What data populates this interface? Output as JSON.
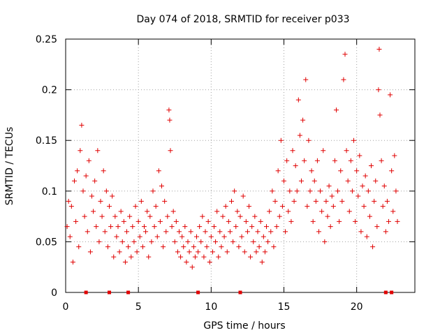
{
  "chart_data": {
    "type": "scatter",
    "title": "Day 074 of 2018, SRMTID for receiver p033",
    "xlabel": "GPS time / hours",
    "ylabel": "SRMTID / TECUs",
    "xlim": [
      0,
      24
    ],
    "ylim": [
      0,
      0.25
    ],
    "xticks": [
      0,
      5,
      10,
      15,
      20
    ],
    "xtick_labels": [
      "0",
      "5",
      "10",
      "15",
      "20"
    ],
    "yticks": [
      0,
      0.05,
      0.1,
      0.15,
      0.2,
      0.25
    ],
    "ytick_labels": [
      "0",
      "0.05",
      "0.1",
      "0.15",
      "0.2",
      "0.25"
    ],
    "grid": true,
    "marker": "plus",
    "color": "#e00000",
    "baseline_markers_x": [
      1.4,
      3.0,
      4.3,
      9.1,
      12.0,
      22.0,
      22.4
    ],
    "series": [
      {
        "name": "SRMTID",
        "points": [
          [
            0.1,
            0.065
          ],
          [
            0.2,
            0.09
          ],
          [
            0.3,
            0.055
          ],
          [
            0.4,
            0.085
          ],
          [
            0.5,
            0.03
          ],
          [
            0.6,
            0.11
          ],
          [
            0.7,
            0.07
          ],
          [
            0.8,
            0.12
          ],
          [
            0.9,
            0.045
          ],
          [
            1.0,
            0.14
          ],
          [
            1.1,
            0.165
          ],
          [
            1.2,
            0.1
          ],
          [
            1.3,
            0.075
          ],
          [
            1.4,
            0.115
          ],
          [
            1.5,
            0.06
          ],
          [
            1.6,
            0.13
          ],
          [
            1.7,
            0.04
          ],
          [
            1.8,
            0.095
          ],
          [
            1.9,
            0.08
          ],
          [
            2.0,
            0.11
          ],
          [
            2.1,
            0.065
          ],
          [
            2.2,
            0.14
          ],
          [
            2.3,
            0.05
          ],
          [
            2.4,
            0.09
          ],
          [
            2.5,
            0.075
          ],
          [
            2.6,
            0.12
          ],
          [
            2.7,
            0.06
          ],
          [
            2.8,
            0.1
          ],
          [
            2.9,
            0.045
          ],
          [
            3.0,
            0.085
          ],
          [
            3.1,
            0.065
          ],
          [
            3.2,
            0.095
          ],
          [
            3.3,
            0.035
          ],
          [
            3.4,
            0.075
          ],
          [
            3.5,
            0.055
          ],
          [
            3.6,
            0.065
          ],
          [
            3.7,
            0.04
          ],
          [
            3.8,
            0.08
          ],
          [
            3.9,
            0.05
          ],
          [
            4.0,
            0.07
          ],
          [
            4.1,
            0.03
          ],
          [
            4.2,
            0.06
          ],
          [
            4.3,
            0.045
          ],
          [
            4.4,
            0.075
          ],
          [
            4.5,
            0.035
          ],
          [
            4.6,
            0.065
          ],
          [
            4.7,
            0.05
          ],
          [
            4.8,
            0.085
          ],
          [
            4.9,
            0.04
          ],
          [
            5.0,
            0.07
          ],
          [
            5.1,
            0.055
          ],
          [
            5.2,
            0.09
          ],
          [
            5.3,
            0.045
          ],
          [
            5.4,
            0.065
          ],
          [
            5.5,
            0.06
          ],
          [
            5.6,
            0.08
          ],
          [
            5.7,
            0.035
          ],
          [
            5.8,
            0.075
          ],
          [
            5.9,
            0.05
          ],
          [
            6.0,
            0.1
          ],
          [
            6.1,
            0.065
          ],
          [
            6.2,
            0.085
          ],
          [
            6.3,
            0.055
          ],
          [
            6.4,
            0.12
          ],
          [
            6.5,
            0.07
          ],
          [
            6.6,
            0.105
          ],
          [
            6.7,
            0.045
          ],
          [
            6.8,
            0.09
          ],
          [
            6.9,
            0.06
          ],
          [
            7.0,
            0.075
          ],
          [
            7.1,
            0.18
          ],
          [
            7.15,
            0.17
          ],
          [
            7.2,
            0.14
          ],
          [
            7.3,
            0.065
          ],
          [
            7.4,
            0.08
          ],
          [
            7.5,
            0.05
          ],
          [
            7.6,
            0.07
          ],
          [
            7.7,
            0.04
          ],
          [
            7.8,
            0.06
          ],
          [
            7.9,
            0.035
          ],
          [
            8.0,
            0.055
          ],
          [
            8.1,
            0.045
          ],
          [
            8.2,
            0.065
          ],
          [
            8.3,
            0.03
          ],
          [
            8.4,
            0.05
          ],
          [
            8.5,
            0.04
          ],
          [
            8.6,
            0.06
          ],
          [
            8.7,
            0.025
          ],
          [
            8.8,
            0.045
          ],
          [
            8.9,
            0.035
          ],
          [
            9.0,
            0.055
          ],
          [
            9.1,
            0.04
          ],
          [
            9.2,
            0.065
          ],
          [
            9.3,
            0.05
          ],
          [
            9.4,
            0.075
          ],
          [
            9.5,
            0.035
          ],
          [
            9.6,
            0.06
          ],
          [
            9.7,
            0.045
          ],
          [
            9.8,
            0.07
          ],
          [
            9.9,
            0.03
          ],
          [
            10.0,
            0.055
          ],
          [
            10.1,
            0.04
          ],
          [
            10.2,
            0.065
          ],
          [
            10.3,
            0.05
          ],
          [
            10.4,
            0.08
          ],
          [
            10.5,
            0.035
          ],
          [
            10.6,
            0.06
          ],
          [
            10.7,
            0.045
          ],
          [
            10.8,
            0.075
          ],
          [
            10.9,
            0.055
          ],
          [
            11.0,
            0.085
          ],
          [
            11.1,
            0.04
          ],
          [
            11.2,
            0.07
          ],
          [
            11.3,
            0.06
          ],
          [
            11.4,
            0.09
          ],
          [
            11.5,
            0.05
          ],
          [
            11.6,
            0.1
          ],
          [
            11.7,
            0.065
          ],
          [
            11.8,
            0.08
          ],
          [
            11.9,
            0.045
          ],
          [
            12.0,
            0.075
          ],
          [
            12.1,
            0.055
          ],
          [
            12.2,
            0.095
          ],
          [
            12.3,
            0.04
          ],
          [
            12.4,
            0.07
          ],
          [
            12.5,
            0.06
          ],
          [
            12.6,
            0.085
          ],
          [
            12.7,
            0.035
          ],
          [
            12.8,
            0.065
          ],
          [
            12.9,
            0.05
          ],
          [
            13.0,
            0.075
          ],
          [
            13.1,
            0.04
          ],
          [
            13.2,
            0.06
          ],
          [
            13.3,
            0.045
          ],
          [
            13.4,
            0.07
          ],
          [
            13.5,
            0.03
          ],
          [
            13.6,
            0.055
          ],
          [
            13.7,
            0.04
          ],
          [
            13.8,
            0.065
          ],
          [
            13.9,
            0.05
          ],
          [
            14.0,
            0.08
          ],
          [
            14.1,
            0.06
          ],
          [
            14.2,
            0.1
          ],
          [
            14.3,
            0.045
          ],
          [
            14.4,
            0.09
          ],
          [
            14.5,
            0.065
          ],
          [
            14.6,
            0.12
          ],
          [
            14.7,
            0.075
          ],
          [
            14.8,
            0.15
          ],
          [
            14.9,
            0.085
          ],
          [
            15.0,
            0.11
          ],
          [
            15.1,
            0.06
          ],
          [
            15.2,
            0.13
          ],
          [
            15.3,
            0.08
          ],
          [
            15.4,
            0.1
          ],
          [
            15.5,
            0.07
          ],
          [
            15.6,
            0.14
          ],
          [
            15.7,
            0.09
          ],
          [
            15.8,
            0.125
          ],
          [
            15.9,
            0.1
          ],
          [
            16.0,
            0.19
          ],
          [
            16.1,
            0.155
          ],
          [
            16.2,
            0.11
          ],
          [
            16.3,
            0.17
          ],
          [
            16.4,
            0.13
          ],
          [
            16.5,
            0.21
          ],
          [
            16.6,
            0.085
          ],
          [
            16.7,
            0.15
          ],
          [
            16.8,
            0.1
          ],
          [
            16.9,
            0.12
          ],
          [
            17.0,
            0.07
          ],
          [
            17.1,
            0.11
          ],
          [
            17.2,
            0.09
          ],
          [
            17.3,
            0.13
          ],
          [
            17.4,
            0.06
          ],
          [
            17.5,
            0.1
          ],
          [
            17.6,
            0.08
          ],
          [
            17.7,
            0.14
          ],
          [
            17.8,
            0.05
          ],
          [
            17.9,
            0.09
          ],
          [
            18.0,
            0.075
          ],
          [
            18.1,
            0.105
          ],
          [
            18.2,
            0.065
          ],
          [
            18.3,
            0.095
          ],
          [
            18.4,
            0.085
          ],
          [
            18.5,
            0.13
          ],
          [
            18.6,
            0.18
          ],
          [
            18.7,
            0.1
          ],
          [
            18.8,
            0.07
          ],
          [
            18.9,
            0.12
          ],
          [
            19.0,
            0.09
          ],
          [
            19.1,
            0.21
          ],
          [
            19.2,
            0.235
          ],
          [
            19.3,
            0.14
          ],
          [
            19.4,
            0.11
          ],
          [
            19.5,
            0.08
          ],
          [
            19.6,
            0.13
          ],
          [
            19.7,
            0.1
          ],
          [
            19.8,
            0.15
          ],
          [
            19.9,
            0.07
          ],
          [
            20.0,
            0.12
          ],
          [
            20.1,
            0.095
          ],
          [
            20.2,
            0.135
          ],
          [
            20.3,
            0.06
          ],
          [
            20.4,
            0.105
          ],
          [
            20.5,
            0.085
          ],
          [
            20.6,
            0.115
          ],
          [
            20.7,
            0.055
          ],
          [
            20.8,
            0.1
          ],
          [
            20.9,
            0.075
          ],
          [
            21.0,
            0.125
          ],
          [
            21.1,
            0.045
          ],
          [
            21.2,
            0.09
          ],
          [
            21.3,
            0.11
          ],
          [
            21.4,
            0.065
          ],
          [
            21.5,
            0.2
          ],
          [
            21.55,
            0.24
          ],
          [
            21.6,
            0.175
          ],
          [
            21.7,
            0.13
          ],
          [
            21.8,
            0.085
          ],
          [
            21.9,
            0.105
          ],
          [
            22.0,
            0.06
          ],
          [
            22.1,
            0.09
          ],
          [
            22.2,
            0.07
          ],
          [
            22.3,
            0.195
          ],
          [
            22.4,
            0.12
          ],
          [
            22.5,
            0.08
          ],
          [
            22.6,
            0.135
          ],
          [
            22.7,
            0.1
          ],
          [
            22.8,
            0.07
          ]
        ]
      }
    ]
  }
}
